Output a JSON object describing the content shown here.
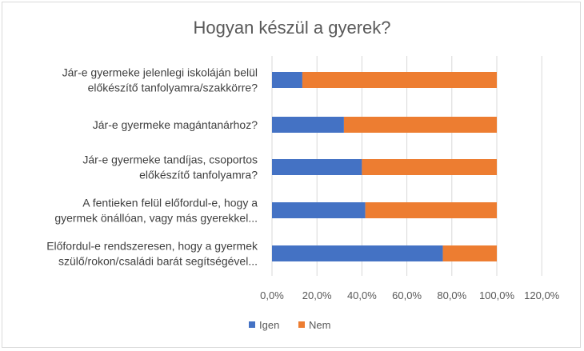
{
  "chart_data": {
    "type": "bar",
    "orientation": "horizontal",
    "stacked": true,
    "title": "Hogyan készül a gyerek?",
    "categories": [
      [
        "Jár-e gyermeke jelenlegi iskoláján belül",
        "előkészítő tanfolyamra/szakkörre?"
      ],
      [
        "Jár-e gyermeke magántanárhoz?"
      ],
      [
        "Jár-e gyermeke tandíjas, csoportos",
        "előkészítő tanfolyamra?"
      ],
      [
        "A fentieken felül előfordul-e, hogy a",
        "gyermek önállóan, vagy más gyerekkel..."
      ],
      [
        "Előfordul-e rendszeresen, hogy a gyermek",
        "szülő/rokon/családi barát segítségével..."
      ]
    ],
    "series": [
      {
        "name": "Igen",
        "color": "#4472c4",
        "values": [
          0.135,
          0.32,
          0.4,
          0.415,
          0.76
        ]
      },
      {
        "name": "Nem",
        "color": "#ed7d31",
        "values": [
          0.865,
          0.68,
          0.6,
          0.585,
          0.24
        ]
      }
    ],
    "xlim": [
      0,
      1.2
    ],
    "ticks": [
      "0,0%",
      "20,0%",
      "40,0%",
      "60,0%",
      "80,0%",
      "100,0%",
      "120,0%"
    ],
    "tick_values": [
      0,
      0.2,
      0.4,
      0.6,
      0.8,
      1.0,
      1.2
    ],
    "gridlines": true,
    "legend_position": "bottom"
  }
}
